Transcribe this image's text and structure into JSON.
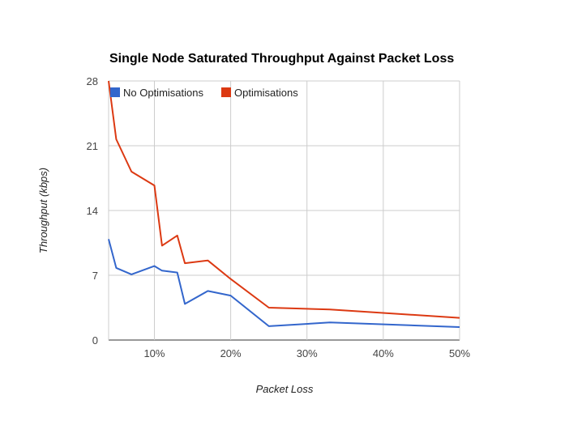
{
  "chart_data": {
    "type": "line",
    "title": "Single Node Saturated Throughput Against Packet Loss",
    "xlabel": "Packet Loss",
    "ylabel": "Throughput (kbps)",
    "xlim": [
      0.04,
      0.5
    ],
    "ylim": [
      0,
      28
    ],
    "x_ticks": [
      0.1,
      0.2,
      0.3,
      0.4,
      0.5
    ],
    "x_tick_labels": [
      "10%",
      "20%",
      "30%",
      "40%",
      "50%"
    ],
    "y_ticks": [
      0,
      7,
      14,
      21,
      28
    ],
    "y_tick_labels": [
      "0",
      "7",
      "14",
      "21",
      "28"
    ],
    "grid": true,
    "legend_position": "top-left",
    "series": [
      {
        "name": "No Optimisations",
        "color": "#3366cc",
        "points": [
          [
            0.04,
            10.9
          ],
          [
            0.05,
            7.8
          ],
          [
            0.07,
            7.1
          ],
          [
            0.1,
            8.0
          ],
          [
            0.11,
            7.5
          ],
          [
            0.13,
            7.3
          ],
          [
            0.14,
            3.9
          ],
          [
            0.17,
            5.3
          ],
          [
            0.2,
            4.8
          ],
          [
            0.25,
            1.5
          ],
          [
            0.33,
            1.9
          ],
          [
            0.5,
            1.4
          ]
        ]
      },
      {
        "name": "Optimisations",
        "color": "#dc3912",
        "points": [
          [
            0.04,
            28.0
          ],
          [
            0.05,
            21.7
          ],
          [
            0.07,
            18.2
          ],
          [
            0.1,
            16.7
          ],
          [
            0.11,
            10.2
          ],
          [
            0.13,
            11.3
          ],
          [
            0.14,
            8.3
          ],
          [
            0.17,
            8.6
          ],
          [
            0.2,
            6.6
          ],
          [
            0.25,
            3.5
          ],
          [
            0.33,
            3.3
          ],
          [
            0.5,
            2.4
          ]
        ]
      }
    ]
  }
}
